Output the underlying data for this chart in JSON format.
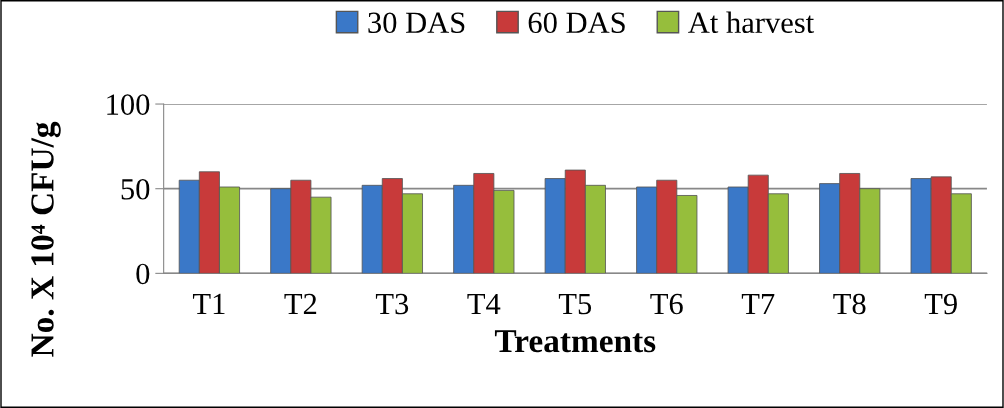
{
  "chart_data": {
    "type": "bar",
    "xlabel": "Treatments",
    "ylabel": "No. X 10⁴ CFU/g",
    "categories": [
      "T1",
      "T2",
      "T3",
      "T4",
      "T5",
      "T6",
      "T7",
      "T8",
      "T9"
    ],
    "series": [
      {
        "name": "30 DAS",
        "color": "#3a78c8",
        "values": [
          55,
          50,
          52,
          52,
          56,
          51,
          51,
          53,
          56
        ]
      },
      {
        "name": "60 DAS",
        "color": "#c83a3a",
        "values": [
          60,
          55,
          56,
          59,
          61,
          55,
          58,
          59,
          57
        ]
      },
      {
        "name": "At harvest",
        "color": "#96be3c",
        "values": [
          51,
          45,
          47,
          49,
          52,
          46,
          47,
          50,
          47
        ]
      }
    ],
    "ylim": [
      0,
      100
    ],
    "yticks": [
      0,
      50,
      100
    ],
    "grid": "y",
    "legend": "top"
  }
}
